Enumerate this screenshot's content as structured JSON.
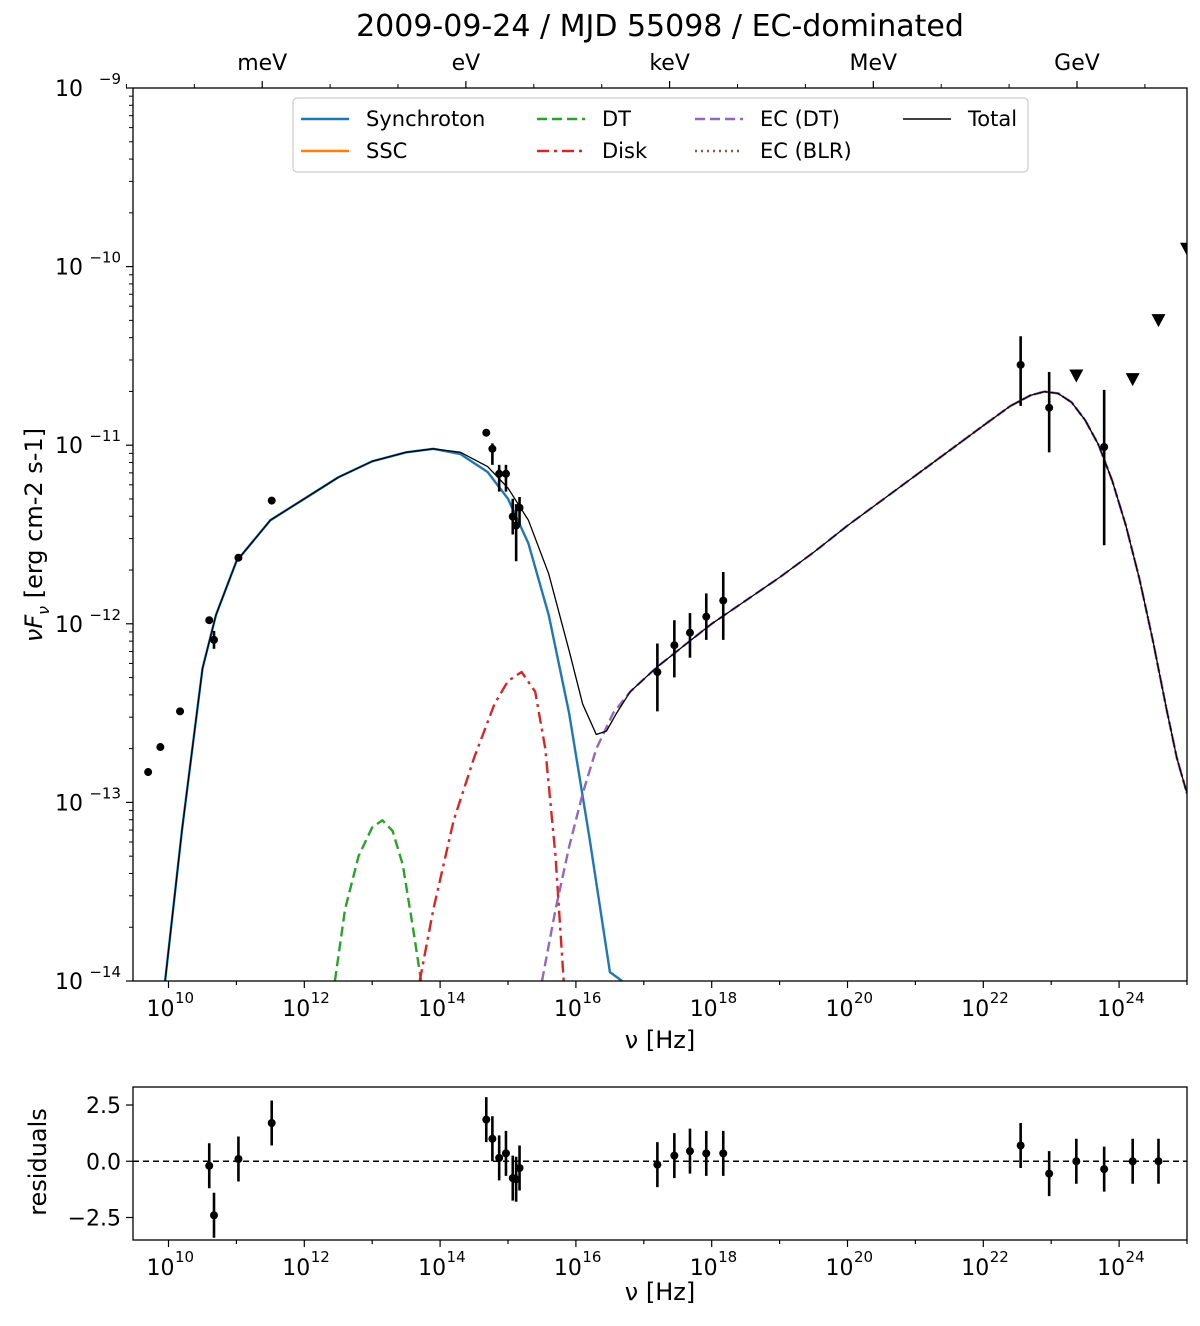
{
  "chart_data": [
    {
      "type": "line",
      "title": "2009-09-24 / MJD 55098 / EC-dominated",
      "xlabel": "ν [Hz]",
      "ylabel": "νF_ν  [erg cm-2 s-1]",
      "x_scale": "log",
      "y_scale": "log",
      "xlim": [
        3000000000.0,
        1e+25
      ],
      "ylim": [
        1e-14,
        1e-09
      ],
      "x_ticks": [
        {
          "exp": 10,
          "label": "10",
          "sup": "10"
        },
        {
          "exp": 12,
          "label": "10",
          "sup": "12"
        },
        {
          "exp": 14,
          "label": "10",
          "sup": "14"
        },
        {
          "exp": 16,
          "label": "10",
          "sup": "16"
        },
        {
          "exp": 18,
          "label": "10",
          "sup": "18"
        },
        {
          "exp": 20,
          "label": "10",
          "sup": "20"
        },
        {
          "exp": 22,
          "label": "10",
          "sup": "22"
        },
        {
          "exp": 24,
          "label": "10",
          "sup": "24"
        }
      ],
      "y_ticks": [
        {
          "exp": -14,
          "label": "10",
          "sup": "−14"
        },
        {
          "exp": -13,
          "label": "10",
          "sup": "−13"
        },
        {
          "exp": -12,
          "label": "10",
          "sup": "−12"
        },
        {
          "exp": -11,
          "label": "10",
          "sup": "−11"
        },
        {
          "exp": -10,
          "label": "10",
          "sup": "−10"
        },
        {
          "exp": -9,
          "label": "10",
          "sup": "−9"
        }
      ],
      "top_axis": {
        "ticks": [
          {
            "label": "meV",
            "freq_log10": 11.38
          },
          {
            "label": "eV",
            "freq_log10": 14.38
          },
          {
            "label": "keV",
            "freq_log10": 17.38
          },
          {
            "label": "MeV",
            "freq_log10": 20.38
          },
          {
            "label": "GeV",
            "freq_log10": 23.38
          }
        ],
        "minor_freq_log10": [
          9.38,
          10.38,
          12.38,
          13.38,
          15.38,
          16.38,
          18.38,
          19.38,
          21.38,
          22.38,
          24.38
        ]
      },
      "legend": {
        "placement": "upper center",
        "entries": [
          {
            "name": "Synchroton",
            "color": "#1f77b4",
            "style": "solid"
          },
          {
            "name": "SSC",
            "color": "#ff7f0e",
            "style": "solid"
          },
          {
            "name": "DT",
            "color": "#2ca02c",
            "style": "dashed"
          },
          {
            "name": "Disk",
            "color": "#d62728",
            "style": "dashdot"
          },
          {
            "name": "EC (DT)",
            "color": "#9467bd",
            "style": "dashed"
          },
          {
            "name": "EC (BLR)",
            "color": "#8c564b",
            "style": "dotted"
          },
          {
            "name": "Total",
            "color": "#000000",
            "style": "solid-thin"
          }
        ]
      },
      "series": [
        {
          "name": "Synchroton",
          "color": "#1f77b4",
          "x_log10": [
            9.95,
            10.2,
            10.5,
            10.7,
            11.0,
            11.5,
            12.0,
            12.5,
            13.0,
            13.5,
            13.9,
            14.3,
            14.7,
            15.0,
            15.3,
            15.6,
            15.9,
            16.2,
            16.5,
            16.68
          ],
          "y_log10": [
            -14.0,
            -13.15,
            -12.25,
            -11.95,
            -11.65,
            -11.42,
            -11.3,
            -11.18,
            -11.09,
            -11.04,
            -11.02,
            -11.05,
            -11.15,
            -11.3,
            -11.55,
            -11.95,
            -12.5,
            -13.2,
            -13.95,
            -14.0
          ]
        },
        {
          "name": "SSC",
          "color": "#ff7f0e",
          "x_log10": [],
          "y_log10": []
        },
        {
          "name": "DT",
          "color": "#2ca02c",
          "x_log10": [
            12.45,
            12.6,
            12.8,
            13.0,
            13.15,
            13.3,
            13.45,
            13.6,
            13.72
          ],
          "y_log10": [
            -14.0,
            -13.6,
            -13.3,
            -13.14,
            -13.1,
            -13.16,
            -13.35,
            -13.7,
            -14.0
          ]
        },
        {
          "name": "Disk",
          "color": "#d62728",
          "x_log10": [
            13.7,
            13.9,
            14.2,
            14.5,
            14.8,
            15.0,
            15.2,
            15.4,
            15.55,
            15.7,
            15.82
          ],
          "y_log10": [
            -14.0,
            -13.6,
            -13.1,
            -12.75,
            -12.45,
            -12.32,
            -12.27,
            -12.38,
            -12.7,
            -13.3,
            -14.0
          ]
        },
        {
          "name": "EC (DT)",
          "color": "#9467bd",
          "x_log10": [
            15.5,
            15.7,
            15.9,
            16.1,
            16.3,
            16.55,
            16.8,
            17.2,
            17.6,
            18.0,
            18.5,
            19.0,
            19.5,
            20.0,
            20.5,
            21.0,
            21.5,
            22.0,
            22.4,
            22.7,
            22.9,
            23.1,
            23.3,
            23.5,
            23.7,
            23.9,
            24.1,
            24.3,
            24.5,
            24.7,
            24.85,
            25.0
          ],
          "y_log10": [
            -14.0,
            -13.6,
            -13.25,
            -12.95,
            -12.7,
            -12.5,
            -12.38,
            -12.24,
            -12.12,
            -12.0,
            -11.87,
            -11.74,
            -11.6,
            -11.45,
            -11.31,
            -11.17,
            -11.03,
            -10.89,
            -10.78,
            -10.72,
            -10.7,
            -10.71,
            -10.76,
            -10.86,
            -11.0,
            -11.2,
            -11.45,
            -11.75,
            -12.1,
            -12.48,
            -12.75,
            -12.95
          ]
        },
        {
          "name": "EC (BLR)",
          "color": "#8c564b",
          "x_log10": [
            21.0,
            21.5,
            22.0,
            22.4,
            22.7,
            22.9,
            23.1,
            23.3,
            23.5,
            23.7,
            23.9,
            24.1,
            24.3,
            24.5,
            24.7,
            24.85,
            25.0
          ],
          "y_log10": [
            -11.17,
            -11.03,
            -10.89,
            -10.78,
            -10.72,
            -10.7,
            -10.71,
            -10.76,
            -10.86,
            -11.0,
            -11.2,
            -11.45,
            -11.75,
            -12.1,
            -12.48,
            -12.75,
            -12.95
          ]
        },
        {
          "name": "Total",
          "color": "#000000",
          "x_log10": [
            9.95,
            10.2,
            10.5,
            10.7,
            11.0,
            11.5,
            12.0,
            12.5,
            13.0,
            13.5,
            13.9,
            14.3,
            14.7,
            15.0,
            15.3,
            15.6,
            15.9,
            16.1,
            16.3,
            16.45,
            16.6,
            16.8,
            17.2,
            17.6,
            18.0,
            18.5,
            19.0,
            19.5,
            20.0,
            20.5,
            21.0,
            21.5,
            22.0,
            22.4,
            22.7,
            22.9,
            23.1,
            23.3,
            23.5,
            23.7,
            23.9,
            24.1,
            24.3,
            24.5,
            24.7,
            24.85,
            25.0
          ],
          "y_log10": [
            -14.0,
            -13.15,
            -12.25,
            -11.95,
            -11.65,
            -11.42,
            -11.3,
            -11.18,
            -11.09,
            -11.04,
            -11.02,
            -11.04,
            -11.12,
            -11.24,
            -11.42,
            -11.72,
            -12.15,
            -12.45,
            -12.62,
            -12.6,
            -12.5,
            -12.38,
            -12.24,
            -12.12,
            -12.0,
            -11.87,
            -11.74,
            -11.6,
            -11.45,
            -11.31,
            -11.17,
            -11.03,
            -10.89,
            -10.78,
            -10.72,
            -10.7,
            -10.71,
            -10.76,
            -10.86,
            -11.0,
            -11.2,
            -11.45,
            -11.75,
            -12.1,
            -12.48,
            -12.75,
            -12.95
          ]
        }
      ],
      "data_points": [
        {
          "x_log10": 9.7,
          "y_log10": -12.83,
          "yerr_lo": 0.02,
          "yerr_hi": 0.02
        },
        {
          "x_log10": 9.88,
          "y_log10": -12.69,
          "yerr_lo": 0.01,
          "yerr_hi": 0.01
        },
        {
          "x_log10": 10.17,
          "y_log10": -12.49,
          "yerr_lo": 0.01,
          "yerr_hi": 0.01
        },
        {
          "x_log10": 10.6,
          "y_log10": -11.98,
          "yerr_lo": 0.02,
          "yerr_hi": 0.02
        },
        {
          "x_log10": 10.67,
          "y_log10": -12.09,
          "yerr_lo": 0.05,
          "yerr_hi": 0.05
        },
        {
          "x_log10": 11.03,
          "y_log10": -11.63,
          "yerr_lo": 0.01,
          "yerr_hi": 0.01
        },
        {
          "x_log10": 11.52,
          "y_log10": -11.31,
          "yerr_lo": 0.02,
          "yerr_hi": 0.02
        },
        {
          "x_log10": 14.68,
          "y_log10": -10.93,
          "yerr_lo": 0.01,
          "yerr_hi": 0.01
        },
        {
          "x_log10": 14.77,
          "y_log10": -11.02,
          "yerr_lo": 0.09,
          "yerr_hi": 0.03
        },
        {
          "x_log10": 14.87,
          "y_log10": -11.16,
          "yerr_lo": 0.1,
          "yerr_hi": 0.05
        },
        {
          "x_log10": 14.97,
          "y_log10": -11.16,
          "yerr_lo": 0.1,
          "yerr_hi": 0.05
        },
        {
          "x_log10": 15.07,
          "y_log10": -11.4,
          "yerr_lo": 0.1,
          "yerr_hi": 0.1
        },
        {
          "x_log10": 15.12,
          "y_log10": -11.45,
          "yerr_lo": 0.2,
          "yerr_hi": 0.12
        },
        {
          "x_log10": 15.17,
          "y_log10": -11.35,
          "yerr_lo": 0.1,
          "yerr_hi": 0.06
        },
        {
          "x_log10": 17.2,
          "y_log10": -12.27,
          "yerr_lo": 0.22,
          "yerr_hi": 0.16
        },
        {
          "x_log10": 17.45,
          "y_log10": -12.12,
          "yerr_lo": 0.18,
          "yerr_hi": 0.14
        },
        {
          "x_log10": 17.68,
          "y_log10": -12.05,
          "yerr_lo": 0.14,
          "yerr_hi": 0.11
        },
        {
          "x_log10": 17.92,
          "y_log10": -11.96,
          "yerr_lo": 0.13,
          "yerr_hi": 0.13
        },
        {
          "x_log10": 18.17,
          "y_log10": -11.87,
          "yerr_lo": 0.22,
          "yerr_hi": 0.16
        },
        {
          "x_log10": 22.55,
          "y_log10": -10.55,
          "yerr_lo": 0.23,
          "yerr_hi": 0.16
        },
        {
          "x_log10": 22.97,
          "y_log10": -10.79,
          "yerr_lo": 0.25,
          "yerr_hi": 0.2
        },
        {
          "x_log10": 23.78,
          "y_log10": -11.01,
          "yerr_lo": 0.55,
          "yerr_hi": 0.32
        }
      ],
      "upper_limits": [
        {
          "x_log10": 23.37,
          "y_log10": -10.61
        },
        {
          "x_log10": 24.2,
          "y_log10": -10.63
        },
        {
          "x_log10": 24.58,
          "y_log10": -10.3
        },
        {
          "x_log10": 25.0,
          "y_log10": -9.9
        }
      ]
    },
    {
      "type": "scatter",
      "xlabel": "ν [Hz]",
      "ylabel": "residuals",
      "x_scale": "log",
      "xlim": [
        3000000000.0,
        1e+25
      ],
      "ylim": [
        -3.5,
        3.3
      ],
      "y_ticks": [
        {
          "value": 2.5,
          "label": "2.5"
        },
        {
          "value": 0.0,
          "label": "0.0"
        },
        {
          "value": -2.5,
          "label": "−2.5"
        }
      ],
      "x_ticks": [
        {
          "exp": 10,
          "label": "10",
          "sup": "10"
        },
        {
          "exp": 12,
          "label": "10",
          "sup": "12"
        },
        {
          "exp": 14,
          "label": "10",
          "sup": "14"
        },
        {
          "exp": 16,
          "label": "10",
          "sup": "16"
        },
        {
          "exp": 18,
          "label": "10",
          "sup": "18"
        },
        {
          "exp": 20,
          "label": "10",
          "sup": "20"
        },
        {
          "exp": 22,
          "label": "10",
          "sup": "22"
        },
        {
          "exp": 24,
          "label": "10",
          "sup": "24"
        }
      ],
      "reference_line": 0,
      "points": [
        {
          "x_log10": 10.6,
          "y": -0.2,
          "err": 1.0
        },
        {
          "x_log10": 10.67,
          "y": -2.4,
          "err": 1.0
        },
        {
          "x_log10": 11.03,
          "y": 0.1,
          "err": 1.0
        },
        {
          "x_log10": 11.52,
          "y": 1.7,
          "err": 1.0
        },
        {
          "x_log10": 14.68,
          "y": 1.85,
          "err": 1.0
        },
        {
          "x_log10": 14.77,
          "y": 1.0,
          "err": 1.0
        },
        {
          "x_log10": 14.87,
          "y": 0.15,
          "err": 1.0
        },
        {
          "x_log10": 14.97,
          "y": 0.35,
          "err": 1.0
        },
        {
          "x_log10": 15.07,
          "y": -0.75,
          "err": 1.0
        },
        {
          "x_log10": 15.12,
          "y": -0.8,
          "err": 1.0
        },
        {
          "x_log10": 15.17,
          "y": -0.3,
          "err": 1.0
        },
        {
          "x_log10": 17.2,
          "y": -0.15,
          "err": 1.0
        },
        {
          "x_log10": 17.45,
          "y": 0.25,
          "err": 1.0
        },
        {
          "x_log10": 17.68,
          "y": 0.45,
          "err": 1.0
        },
        {
          "x_log10": 17.92,
          "y": 0.35,
          "err": 1.0
        },
        {
          "x_log10": 18.17,
          "y": 0.35,
          "err": 1.0
        },
        {
          "x_log10": 22.55,
          "y": 0.7,
          "err": 1.0
        },
        {
          "x_log10": 22.97,
          "y": -0.55,
          "err": 1.0
        },
        {
          "x_log10": 23.37,
          "y": 0.0,
          "err": 1.0
        },
        {
          "x_log10": 23.78,
          "y": -0.35,
          "err": 1.0
        },
        {
          "x_log10": 24.2,
          "y": 0.0,
          "err": 1.0
        },
        {
          "x_log10": 24.58,
          "y": 0.0,
          "err": 1.0
        }
      ]
    }
  ]
}
